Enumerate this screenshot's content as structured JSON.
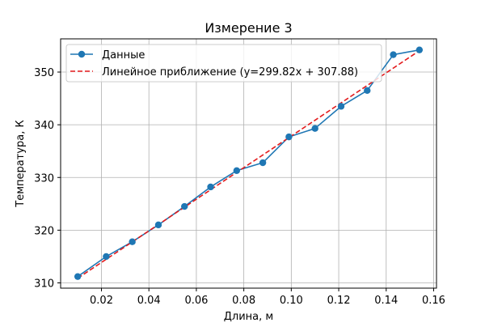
{
  "chart_data": {
    "type": "line",
    "title": "Измерение 3",
    "xlabel": "Длина, м",
    "ylabel": "Температура, К",
    "xlim": [
      0.0028,
      0.1612
    ],
    "ylim": [
      309.0,
      356.3
    ],
    "xticks": [
      0.02,
      0.04,
      0.06,
      0.08,
      0.1,
      0.12,
      0.14,
      0.16
    ],
    "xtick_labels": [
      "0.02",
      "0.04",
      "0.06",
      "0.08",
      "0.10",
      "0.12",
      "0.14",
      "0.16"
    ],
    "yticks": [
      310,
      320,
      330,
      340,
      350
    ],
    "ytick_labels": [
      "310",
      "320",
      "330",
      "340",
      "350"
    ],
    "grid": true,
    "legend_position": "top-left",
    "series": [
      {
        "name": "Данные",
        "style": "solid-with-circle-markers",
        "color": "#1f77b4",
        "x": [
          0.01,
          0.022,
          0.033,
          0.044,
          0.055,
          0.066,
          0.077,
          0.088,
          0.099,
          0.11,
          0.121,
          0.132,
          0.143,
          0.154
        ],
        "y": [
          311.2,
          315.0,
          317.8,
          321.0,
          324.5,
          328.2,
          331.3,
          332.8,
          337.7,
          339.3,
          343.5,
          346.5,
          353.3,
          354.2
        ]
      },
      {
        "name": "Линейное приближение (y=299.82x + 307.88)",
        "style": "dashed",
        "color": "#e31a1c",
        "x": [
          0.01,
          0.154
        ],
        "y": [
          310.88,
          354.05
        ]
      }
    ]
  }
}
